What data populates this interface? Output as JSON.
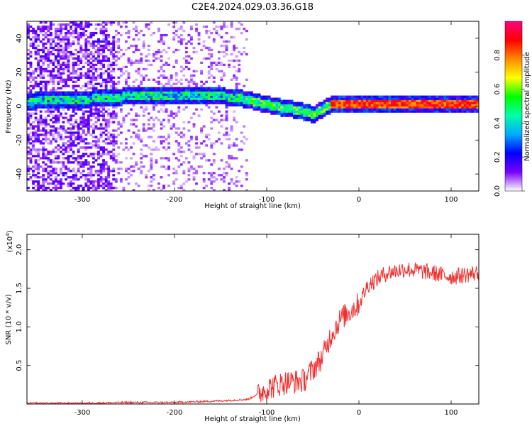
{
  "title": "C2E4.2024.029.03.36.G18",
  "colors": {
    "snr_line": "#f03030",
    "colormap": [
      "#ffffff",
      "#7a00ff",
      "#0000ff",
      "#00aaff",
      "#00ffaa",
      "#00ff00",
      "#ffff00",
      "#ff8800",
      "#ff0000",
      "#ff0080"
    ]
  },
  "chart_data": [
    {
      "type": "heatmap",
      "title": "C2E4.2024.029.03.36.G18",
      "xlabel": "Height of straight line (km)",
      "ylabel": "Frequency (Hz)",
      "xlim": [
        -360,
        130
      ],
      "ylim": [
        -50,
        50
      ],
      "x_ticks": [
        -300,
        -200,
        -100,
        0,
        100
      ],
      "y_ticks": [
        -40,
        -20,
        0,
        20,
        40
      ],
      "colorbar": {
        "label": "Normalized spectral amplitude",
        "range": [
          0.0,
          1.0
        ],
        "ticks": [
          "0.0",
          "0.2",
          "0.4",
          "0.6",
          "0.8"
        ]
      },
      "ridge": [
        {
          "x": -360,
          "y": 3
        },
        {
          "x": -300,
          "y": 4
        },
        {
          "x": -270,
          "y": 5
        },
        {
          "x": -250,
          "y": 6
        },
        {
          "x": -200,
          "y": 6
        },
        {
          "x": -150,
          "y": 6
        },
        {
          "x": -120,
          "y": 4
        },
        {
          "x": -100,
          "y": 1
        },
        {
          "x": -80,
          "y": -1
        },
        {
          "x": -60,
          "y": -3
        },
        {
          "x": -50,
          "y": -5
        },
        {
          "x": -40,
          "y": -2
        },
        {
          "x": -30,
          "y": 1
        },
        {
          "x": 0,
          "y": 1
        },
        {
          "x": 130,
          "y": 1
        }
      ]
    },
    {
      "type": "line",
      "xlabel": "Height of straight line (km)",
      "ylabel": "SNR (10 * v/v)",
      "y_scale_note": "(x10^4)",
      "xlim": [
        -360,
        130
      ],
      "ylim": [
        0,
        2.2
      ],
      "x_ticks": [
        -300,
        -200,
        -100,
        0,
        100
      ],
      "y_ticks": [
        0.5,
        1.0,
        1.5,
        2.0
      ],
      "series": [
        {
          "values": [
            {
              "x": -360,
              "y": 0.01
            },
            {
              "x": -300,
              "y": 0.01
            },
            {
              "x": -250,
              "y": 0.02
            },
            {
              "x": -200,
              "y": 0.02
            },
            {
              "x": -150,
              "y": 0.04
            },
            {
              "x": -120,
              "y": 0.06
            },
            {
              "x": -100,
              "y": 0.2
            },
            {
              "x": -80,
              "y": 0.28
            },
            {
              "x": -60,
              "y": 0.3
            },
            {
              "x": -40,
              "y": 0.6
            },
            {
              "x": -30,
              "y": 0.9
            },
            {
              "x": -20,
              "y": 1.1
            },
            {
              "x": -10,
              "y": 1.2
            },
            {
              "x": 0,
              "y": 1.3
            },
            {
              "x": 10,
              "y": 1.55
            },
            {
              "x": 30,
              "y": 1.7
            },
            {
              "x": 50,
              "y": 1.75
            },
            {
              "x": 70,
              "y": 1.72
            },
            {
              "x": 100,
              "y": 1.65
            },
            {
              "x": 130,
              "y": 1.7
            }
          ]
        }
      ]
    }
  ]
}
